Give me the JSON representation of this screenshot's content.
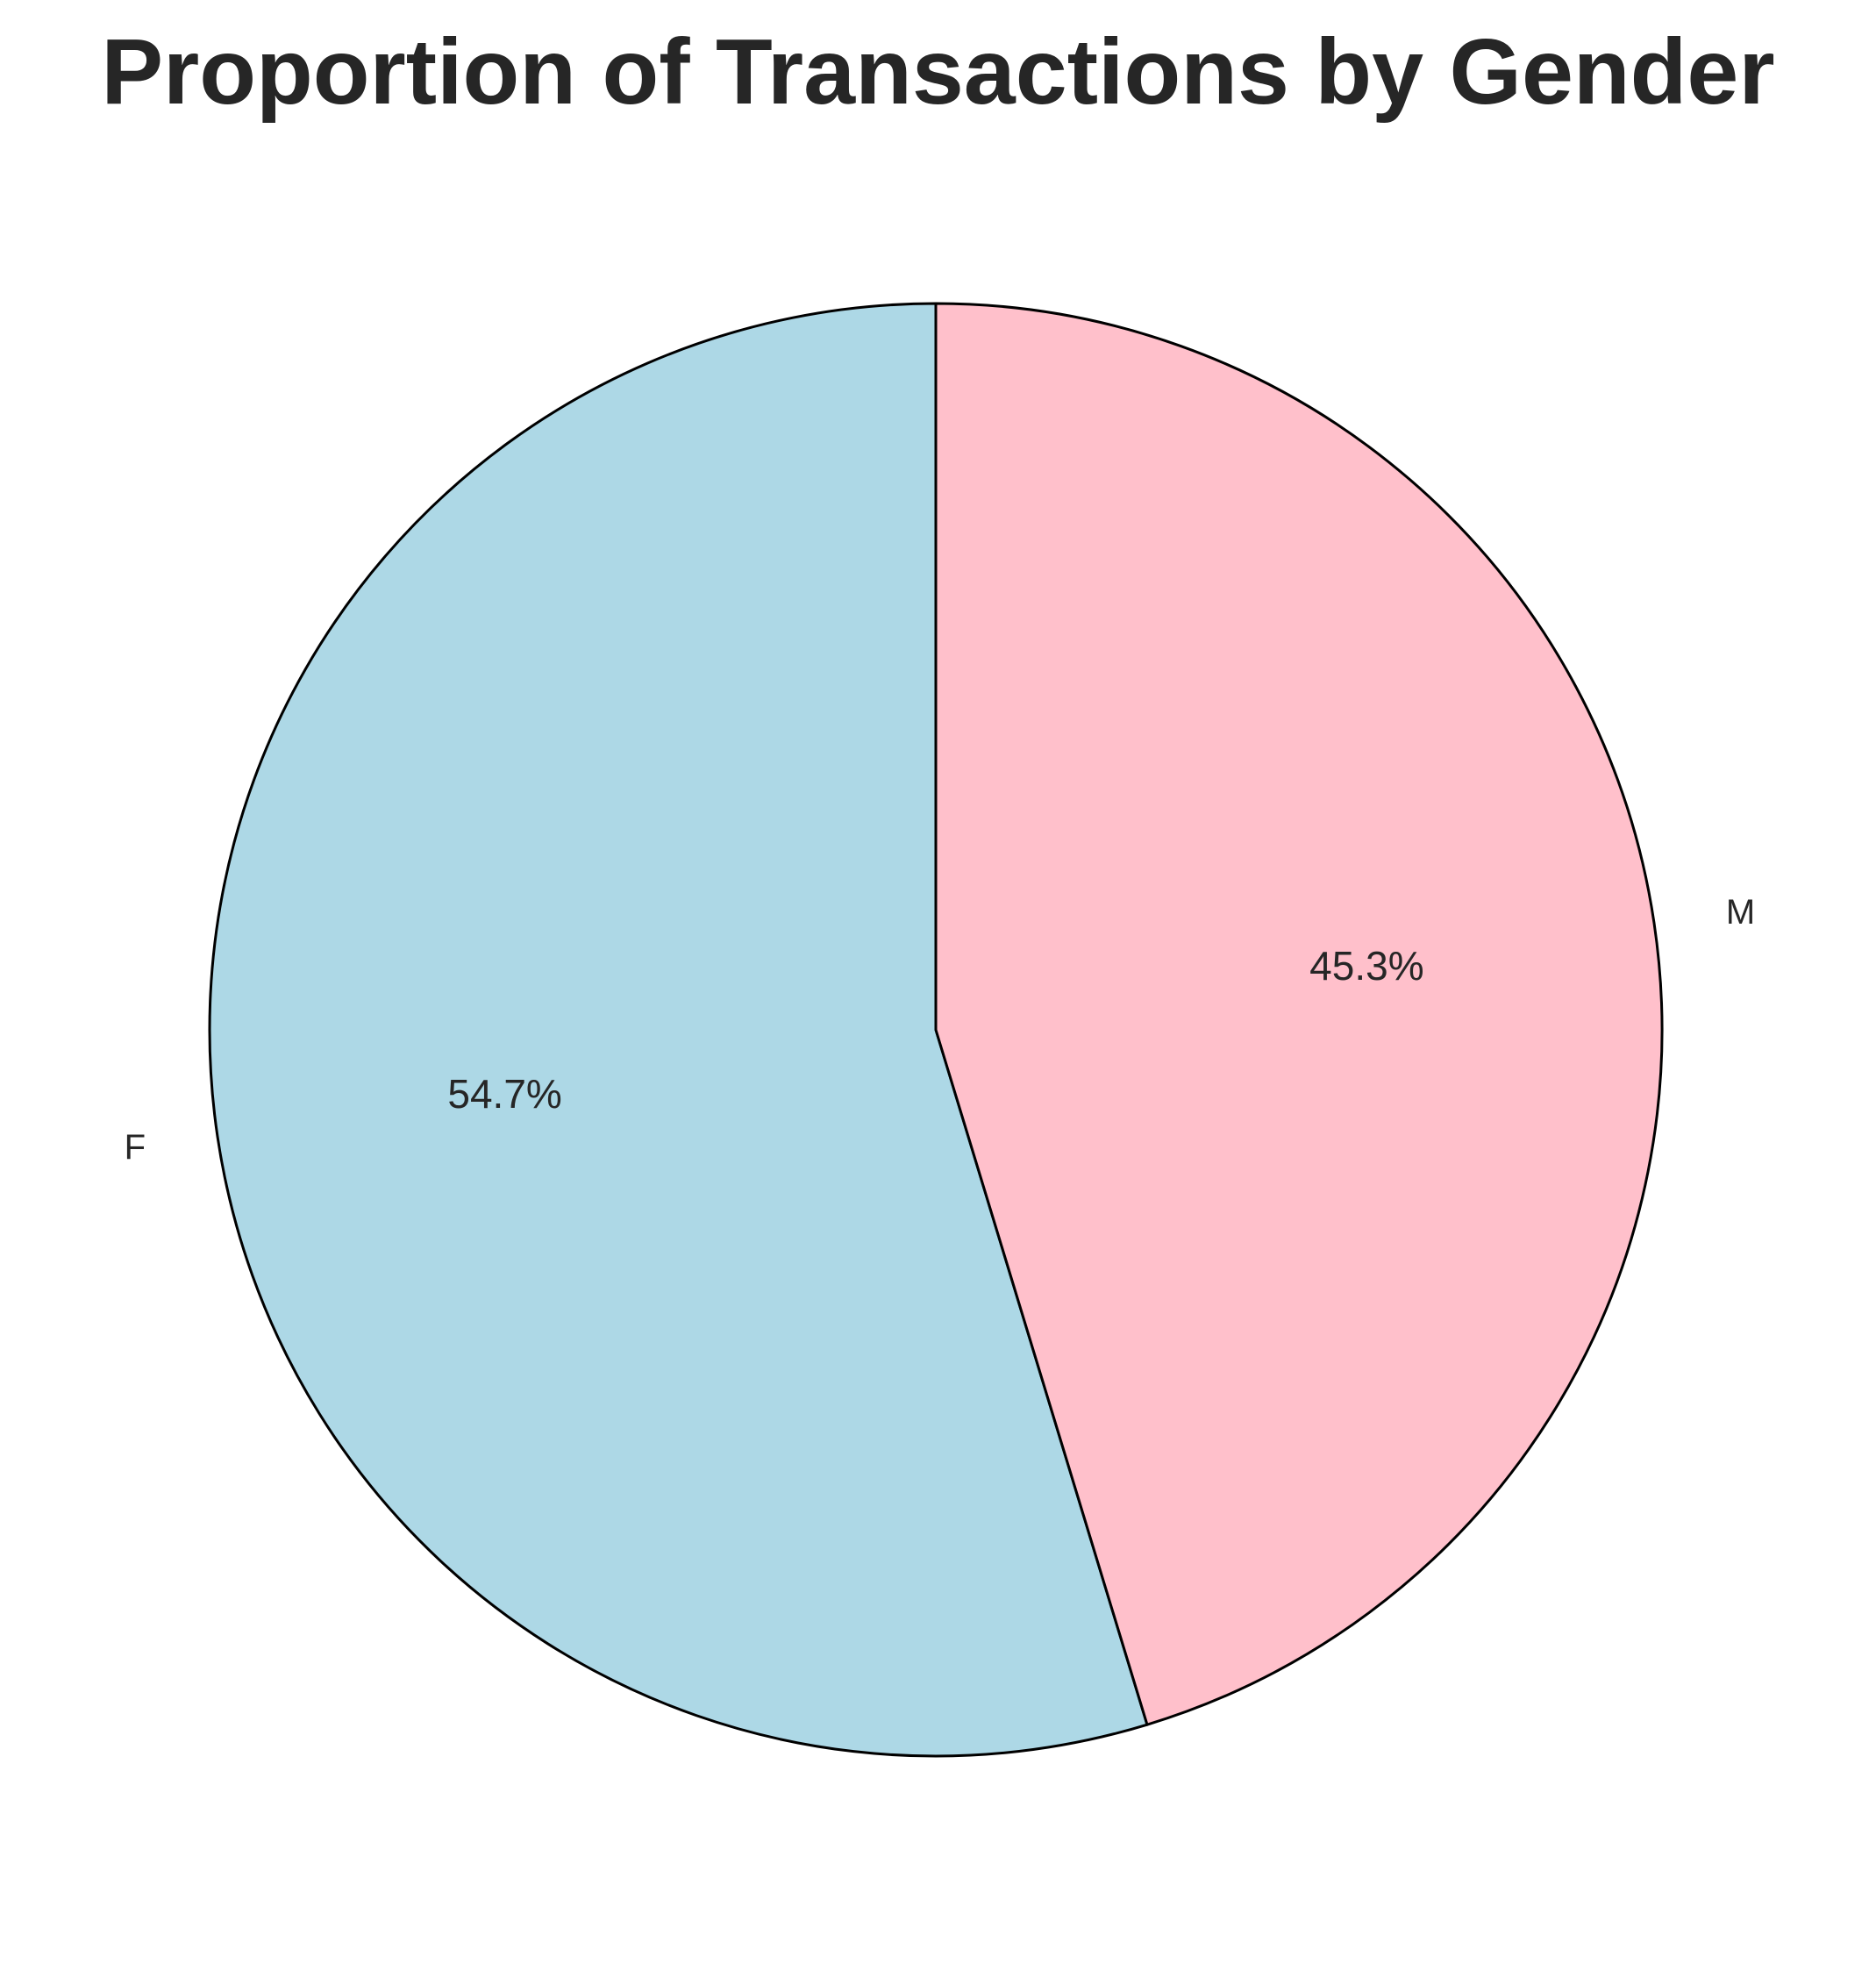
{
  "chart_data": {
    "type": "pie",
    "title": "Proportion of Transactions by Gender",
    "start_angle_deg": 90,
    "direction": "counterclockwise",
    "slices": [
      {
        "label": "F",
        "value": 54.7,
        "pct_label": "54.7%",
        "color": "#ADD8E6"
      },
      {
        "label": "M",
        "value": 45.3,
        "pct_label": "45.3%",
        "color": "#FFC0CB"
      }
    ],
    "edge_color": "#000000",
    "legend": "none"
  }
}
